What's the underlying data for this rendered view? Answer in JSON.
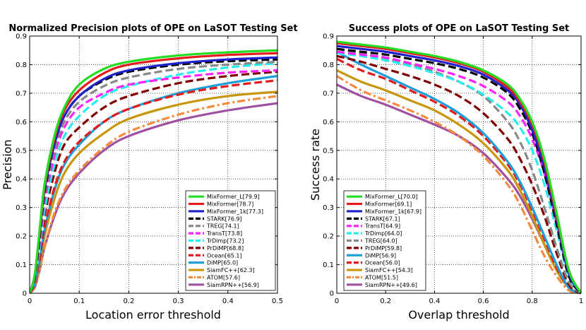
{
  "chart_data": [
    {
      "type": "line",
      "title": "Normalized Precision plots of OPE on LaSOT Testing Set",
      "xlabel": "Location error threshold",
      "ylabel": "Precision",
      "xlim": [
        0,
        0.5
      ],
      "ylim": [
        0,
        0.9
      ],
      "xticks": [
        "0",
        "0.1",
        "0.2",
        "0.3",
        "0.4",
        "0.5"
      ],
      "yticks": [
        "0",
        "0.1",
        "0.2",
        "0.3",
        "0.4",
        "0.5",
        "0.6",
        "0.7",
        "0.8",
        "0.9"
      ],
      "grid": true,
      "legend_position": "lower-right",
      "series": [
        {
          "name": "MixFormer_L",
          "label": "MixFormer_L[79.9]",
          "color": "#22dd22",
          "dash": "solid",
          "x": [
            0,
            0.01,
            0.02,
            0.03,
            0.05,
            0.07,
            0.1,
            0.15,
            0.2,
            0.3,
            0.4,
            0.5
          ],
          "values": [
            0,
            0.06,
            0.22,
            0.38,
            0.55,
            0.65,
            0.73,
            0.785,
            0.81,
            0.832,
            0.843,
            0.85
          ]
        },
        {
          "name": "MixFormer",
          "label": "MixFormer[78.7]",
          "color": "#e41a1c",
          "dash": "solid",
          "x": [
            0,
            0.01,
            0.02,
            0.03,
            0.05,
            0.07,
            0.1,
            0.15,
            0.2,
            0.3,
            0.4,
            0.5
          ],
          "values": [
            0,
            0.06,
            0.21,
            0.37,
            0.54,
            0.64,
            0.71,
            0.77,
            0.8,
            0.822,
            0.834,
            0.84
          ]
        },
        {
          "name": "MixFormer_1k",
          "label": "MixFormer_1k[77.3]",
          "color": "#1f1fcc",
          "dash": "solid",
          "x": [
            0,
            0.01,
            0.02,
            0.03,
            0.05,
            0.07,
            0.1,
            0.15,
            0.2,
            0.3,
            0.4,
            0.5
          ],
          "values": [
            0,
            0.06,
            0.2,
            0.36,
            0.52,
            0.62,
            0.69,
            0.75,
            0.78,
            0.805,
            0.818,
            0.825
          ]
        },
        {
          "name": "STARK",
          "label": "STARK[76.9]",
          "color": "#000000",
          "dash": "dashed",
          "x": [
            0,
            0.01,
            0.02,
            0.03,
            0.05,
            0.07,
            0.1,
            0.15,
            0.2,
            0.3,
            0.4,
            0.5
          ],
          "values": [
            0,
            0.05,
            0.19,
            0.35,
            0.52,
            0.62,
            0.69,
            0.745,
            0.775,
            0.8,
            0.812,
            0.818
          ]
        },
        {
          "name": "TREG",
          "label": "TREG[74.1]",
          "color": "#888888",
          "dash": "dashed",
          "x": [
            0,
            0.01,
            0.02,
            0.03,
            0.05,
            0.07,
            0.1,
            0.15,
            0.2,
            0.3,
            0.4,
            0.5
          ],
          "values": [
            0,
            0.05,
            0.18,
            0.34,
            0.5,
            0.6,
            0.67,
            0.725,
            0.755,
            0.785,
            0.8,
            0.81
          ]
        },
        {
          "name": "TransT",
          "label": "TransT[73.8]",
          "color": "#ff22ff",
          "dash": "dashed",
          "x": [
            0,
            0.01,
            0.02,
            0.03,
            0.05,
            0.07,
            0.1,
            0.15,
            0.2,
            0.3,
            0.4,
            0.5
          ],
          "values": [
            0,
            0.05,
            0.17,
            0.32,
            0.48,
            0.58,
            0.65,
            0.7,
            0.73,
            0.755,
            0.772,
            0.78
          ]
        },
        {
          "name": "TrDimp",
          "label": "TrDimp[73.2]",
          "color": "#22eeee",
          "dash": "dashed",
          "x": [
            0,
            0.01,
            0.02,
            0.03,
            0.05,
            0.07,
            0.1,
            0.15,
            0.2,
            0.3,
            0.4,
            0.5
          ],
          "values": [
            0,
            0.04,
            0.15,
            0.29,
            0.45,
            0.55,
            0.62,
            0.69,
            0.725,
            0.765,
            0.79,
            0.805
          ]
        },
        {
          "name": "PrDiMP",
          "label": "PrDiMP[68.8]",
          "color": "#800000",
          "dash": "dashed",
          "x": [
            0,
            0.01,
            0.02,
            0.03,
            0.05,
            0.07,
            0.1,
            0.15,
            0.2,
            0.3,
            0.4,
            0.5
          ],
          "values": [
            0,
            0.04,
            0.14,
            0.27,
            0.42,
            0.52,
            0.58,
            0.65,
            0.69,
            0.735,
            0.76,
            0.775
          ]
        },
        {
          "name": "Ocean",
          "label": "Ocean[65.1]",
          "color": "#e41a1c",
          "dash": "dashed",
          "x": [
            0,
            0.01,
            0.02,
            0.03,
            0.05,
            0.07,
            0.1,
            0.15,
            0.2,
            0.3,
            0.4,
            0.5
          ],
          "values": [
            0,
            0.03,
            0.12,
            0.23,
            0.37,
            0.46,
            0.53,
            0.6,
            0.645,
            0.695,
            0.725,
            0.745
          ]
        },
        {
          "name": "DiMP",
          "label": "DiMP[65.0]",
          "color": "#1e9fd8",
          "dash": "solid",
          "x": [
            0,
            0.01,
            0.02,
            0.03,
            0.05,
            0.07,
            0.1,
            0.15,
            0.2,
            0.3,
            0.4,
            0.5
          ],
          "values": [
            0,
            0.03,
            0.11,
            0.22,
            0.36,
            0.45,
            0.52,
            0.6,
            0.645,
            0.7,
            0.735,
            0.76
          ]
        },
        {
          "name": "SiamFC++",
          "label": "SiamFC++[62.3]",
          "color": "#c8960a",
          "dash": "solid",
          "x": [
            0,
            0.01,
            0.02,
            0.03,
            0.05,
            0.07,
            0.1,
            0.15,
            0.2,
            0.3,
            0.4,
            0.5
          ],
          "values": [
            0,
            0.03,
            0.1,
            0.2,
            0.33,
            0.42,
            0.49,
            0.56,
            0.61,
            0.66,
            0.69,
            0.705
          ]
        },
        {
          "name": "ATOM",
          "label": "ATOM[57.6]",
          "color": "#f58a3c",
          "dash": "dashdot",
          "x": [
            0,
            0.01,
            0.02,
            0.03,
            0.05,
            0.07,
            0.1,
            0.15,
            0.2,
            0.3,
            0.4,
            0.5
          ],
          "values": [
            0,
            0.02,
            0.08,
            0.16,
            0.28,
            0.36,
            0.43,
            0.51,
            0.565,
            0.625,
            0.665,
            0.69
          ]
        },
        {
          "name": "SiamRPN++",
          "label": "SiamRPN++[56.9]",
          "color": "#a050a0",
          "dash": "solid",
          "x": [
            0,
            0.01,
            0.02,
            0.03,
            0.05,
            0.07,
            0.1,
            0.15,
            0.2,
            0.3,
            0.4,
            0.5
          ],
          "values": [
            0,
            0.02,
            0.08,
            0.16,
            0.27,
            0.35,
            0.42,
            0.5,
            0.55,
            0.605,
            0.64,
            0.665
          ]
        }
      ]
    },
    {
      "type": "line",
      "title": "Success plots of OPE on LaSOT Testing Set",
      "xlabel": "Overlap threshold",
      "ylabel": "Success rate",
      "xlim": [
        0,
        1
      ],
      "ylim": [
        0,
        0.9
      ],
      "xticks": [
        "0",
        "0.2",
        "0.4",
        "0.6",
        "0.8",
        "1"
      ],
      "yticks": [
        "0",
        "0.1",
        "0.2",
        "0.3",
        "0.4",
        "0.5",
        "0.6",
        "0.7",
        "0.8",
        "0.9"
      ],
      "grid": true,
      "legend_position": "lower-left",
      "series": [
        {
          "name": "MixFormer_L",
          "label": "MixFormer_L[70.0]",
          "color": "#22dd22",
          "dash": "solid",
          "x": [
            0,
            0.1,
            0.2,
            0.3,
            0.4,
            0.5,
            0.6,
            0.7,
            0.75,
            0.8,
            0.85,
            0.9,
            0.95,
            1.0
          ],
          "values": [
            0.88,
            0.87,
            0.86,
            0.845,
            0.83,
            0.81,
            0.78,
            0.73,
            0.68,
            0.6,
            0.47,
            0.28,
            0.08,
            0
          ]
        },
        {
          "name": "MixFormer",
          "label": "MixFormer[69.1]",
          "color": "#e41a1c",
          "dash": "solid",
          "x": [
            0,
            0.1,
            0.2,
            0.3,
            0.4,
            0.5,
            0.6,
            0.7,
            0.75,
            0.8,
            0.85,
            0.9,
            0.95,
            1.0
          ],
          "values": [
            0.875,
            0.865,
            0.855,
            0.84,
            0.825,
            0.805,
            0.775,
            0.72,
            0.67,
            0.59,
            0.46,
            0.27,
            0.08,
            0
          ]
        },
        {
          "name": "MixFormer_1k",
          "label": "MixFormer_1k[67.9]",
          "color": "#1f1fcc",
          "dash": "solid",
          "x": [
            0,
            0.1,
            0.2,
            0.3,
            0.4,
            0.5,
            0.6,
            0.7,
            0.75,
            0.8,
            0.85,
            0.9,
            0.95,
            1.0
          ],
          "values": [
            0.865,
            0.855,
            0.845,
            0.83,
            0.815,
            0.795,
            0.765,
            0.71,
            0.66,
            0.57,
            0.44,
            0.26,
            0.07,
            0
          ]
        },
        {
          "name": "STARK",
          "label": "STARK[67.1]",
          "color": "#000000",
          "dash": "dashed",
          "x": [
            0,
            0.1,
            0.2,
            0.3,
            0.4,
            0.5,
            0.6,
            0.7,
            0.75,
            0.8,
            0.85,
            0.9,
            0.95,
            1.0
          ],
          "values": [
            0.855,
            0.845,
            0.835,
            0.82,
            0.805,
            0.785,
            0.755,
            0.7,
            0.645,
            0.56,
            0.42,
            0.24,
            0.06,
            0
          ]
        },
        {
          "name": "TransT",
          "label": "TransT[64.9]",
          "color": "#ff22ff",
          "dash": "dashed",
          "x": [
            0,
            0.1,
            0.2,
            0.3,
            0.4,
            0.5,
            0.6,
            0.7,
            0.75,
            0.8,
            0.85,
            0.9,
            0.95,
            1.0
          ],
          "values": [
            0.845,
            0.835,
            0.825,
            0.805,
            0.785,
            0.76,
            0.725,
            0.67,
            0.62,
            0.54,
            0.42,
            0.25,
            0.07,
            0
          ]
        },
        {
          "name": "TrDimp",
          "label": "TrDimp[64.0]",
          "color": "#22eeee",
          "dash": "dashed",
          "x": [
            0,
            0.1,
            0.2,
            0.3,
            0.4,
            0.5,
            0.6,
            0.7,
            0.75,
            0.8,
            0.85,
            0.9,
            0.95,
            1.0
          ],
          "values": [
            0.84,
            0.83,
            0.815,
            0.795,
            0.77,
            0.74,
            0.695,
            0.63,
            0.58,
            0.5,
            0.38,
            0.22,
            0.06,
            0
          ]
        },
        {
          "name": "TREG",
          "label": "TREG[64.0]",
          "color": "#888888",
          "dash": "dashed",
          "x": [
            0,
            0.1,
            0.2,
            0.3,
            0.4,
            0.5,
            0.6,
            0.7,
            0.75,
            0.8,
            0.85,
            0.9,
            0.95,
            1.0
          ],
          "values": [
            0.855,
            0.84,
            0.82,
            0.8,
            0.775,
            0.74,
            0.69,
            0.6,
            0.53,
            0.43,
            0.3,
            0.16,
            0.04,
            0
          ]
        },
        {
          "name": "PrDiMP",
          "label": "PrDiMP[59.8]",
          "color": "#800000",
          "dash": "dashed",
          "x": [
            0,
            0.1,
            0.2,
            0.3,
            0.4,
            0.5,
            0.6,
            0.7,
            0.75,
            0.8,
            0.85,
            0.9,
            0.95,
            1.0
          ],
          "values": [
            0.83,
            0.81,
            0.785,
            0.76,
            0.73,
            0.69,
            0.63,
            0.54,
            0.47,
            0.38,
            0.27,
            0.14,
            0.03,
            0
          ]
        },
        {
          "name": "DiMP",
          "label": "DiMP[56.9]",
          "color": "#1e9fd8",
          "dash": "solid",
          "x": [
            0,
            0.1,
            0.2,
            0.3,
            0.4,
            0.5,
            0.6,
            0.7,
            0.75,
            0.8,
            0.85,
            0.9,
            0.95,
            1.0
          ],
          "values": [
            0.845,
            0.8,
            0.76,
            0.72,
            0.68,
            0.63,
            0.56,
            0.46,
            0.39,
            0.3,
            0.2,
            0.1,
            0.02,
            0
          ]
        },
        {
          "name": "Ocean",
          "label": "Ocean[56.0]",
          "color": "#e41a1c",
          "dash": "dashed",
          "x": [
            0,
            0.1,
            0.2,
            0.3,
            0.4,
            0.5,
            0.6,
            0.7,
            0.75,
            0.8,
            0.85,
            0.9,
            0.95,
            1.0
          ],
          "values": [
            0.82,
            0.78,
            0.75,
            0.71,
            0.67,
            0.62,
            0.55,
            0.45,
            0.38,
            0.29,
            0.19,
            0.09,
            0.02,
            0
          ]
        },
        {
          "name": "SiamFC++",
          "label": "SiamFC++[54.3]",
          "color": "#c8960a",
          "dash": "solid",
          "x": [
            0,
            0.1,
            0.2,
            0.3,
            0.4,
            0.5,
            0.6,
            0.7,
            0.75,
            0.8,
            0.85,
            0.9,
            0.95,
            1.0
          ],
          "values": [
            0.78,
            0.74,
            0.71,
            0.675,
            0.64,
            0.59,
            0.525,
            0.43,
            0.36,
            0.27,
            0.17,
            0.08,
            0.02,
            0
          ]
        },
        {
          "name": "ATOM",
          "label": "ATOM[51.5]",
          "color": "#f58a3c",
          "dash": "dashdot",
          "x": [
            0,
            0.1,
            0.2,
            0.3,
            0.4,
            0.5,
            0.6,
            0.7,
            0.75,
            0.8,
            0.85,
            0.9,
            0.95,
            1.0
          ],
          "values": [
            0.76,
            0.71,
            0.675,
            0.64,
            0.6,
            0.55,
            0.48,
            0.38,
            0.31,
            0.22,
            0.13,
            0.06,
            0.01,
            0
          ]
        },
        {
          "name": "SiamRPN++",
          "label": "SiamRPN++[49.6]",
          "color": "#a050a0",
          "dash": "solid",
          "x": [
            0,
            0.1,
            0.2,
            0.3,
            0.4,
            0.5,
            0.6,
            0.7,
            0.75,
            0.8,
            0.85,
            0.9,
            0.95,
            1.0
          ],
          "values": [
            0.73,
            0.69,
            0.66,
            0.625,
            0.59,
            0.55,
            0.49,
            0.4,
            0.34,
            0.26,
            0.17,
            0.08,
            0.02,
            0
          ]
        }
      ]
    }
  ]
}
